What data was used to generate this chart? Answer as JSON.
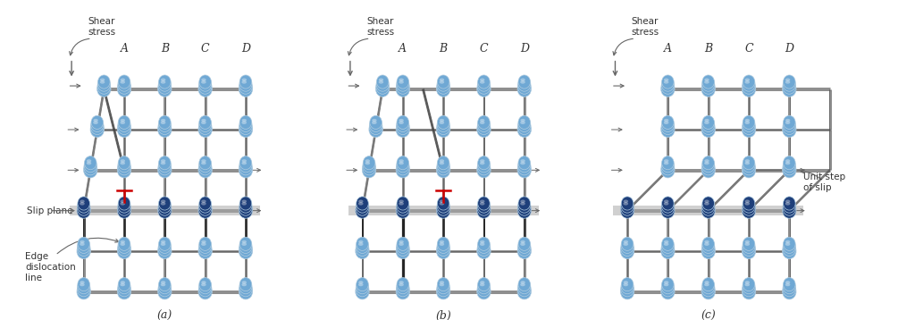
{
  "bg": "#ffffff",
  "atom_light": "#6fa8d4",
  "atom_dark": "#1e3f7a",
  "atom_edge": "#4a80b0",
  "line_col": "#555555",
  "line_dark": "#222222",
  "slip_col": "#888888",
  "red_col": "#cc0000",
  "txt_col": "#333333",
  "arrow_col": "#666666",
  "col_labels": [
    "A",
    "B",
    "C",
    "D"
  ],
  "panel_labels": [
    "(a)",
    "(b)",
    "(c)"
  ]
}
